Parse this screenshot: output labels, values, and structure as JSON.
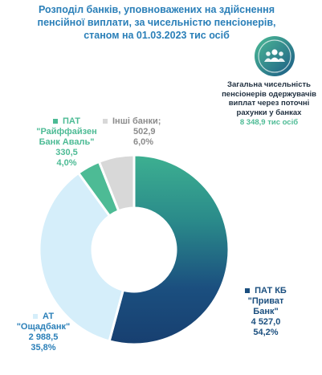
{
  "title_lines": [
    "Розподіл банків, уповноважених на здійснення",
    "пенсійної виплати, за чисельністю пенсіонерів,",
    "станом на 01.03.2023 тис осіб"
  ],
  "total": {
    "icon": "people-group-icon",
    "label_lines": [
      "Загальна чисельність",
      "пенсіонерів одержувачів",
      "виплат через поточні",
      "рахунки у банках"
    ],
    "value": "8 348,9 тис осіб"
  },
  "chart_data": {
    "type": "pie",
    "donut": true,
    "slices": [
      {
        "name_lines": [
          "ПАТ КБ",
          "\"Приват",
          "Банк\""
        ],
        "value": 4527.0,
        "value_text": "4 527,0",
        "percent": 54.2,
        "percent_text": "54,2%",
        "color": "#1b4f7f",
        "color2": "#3db091"
      },
      {
        "name_lines": [
          "АТ",
          "\"Ощадбанк\""
        ],
        "value": 2988.5,
        "value_text": "2 988,5",
        "percent": 35.8,
        "percent_text": "35,8%",
        "color": "#d5eefa"
      },
      {
        "name_lines": [
          "ПАТ",
          "\"Райффайзен",
          "Банк Аваль\""
        ],
        "value": 330.5,
        "value_text": "330,5",
        "percent": 4.0,
        "percent_text": "4,0%",
        "color": "#4dbb95"
      },
      {
        "name_lines": [
          "Інші банки;"
        ],
        "value": 502.9,
        "value_text": "502,9",
        "percent": 6.0,
        "percent_text": "6,0%",
        "color": "#d8d8d8"
      }
    ]
  }
}
